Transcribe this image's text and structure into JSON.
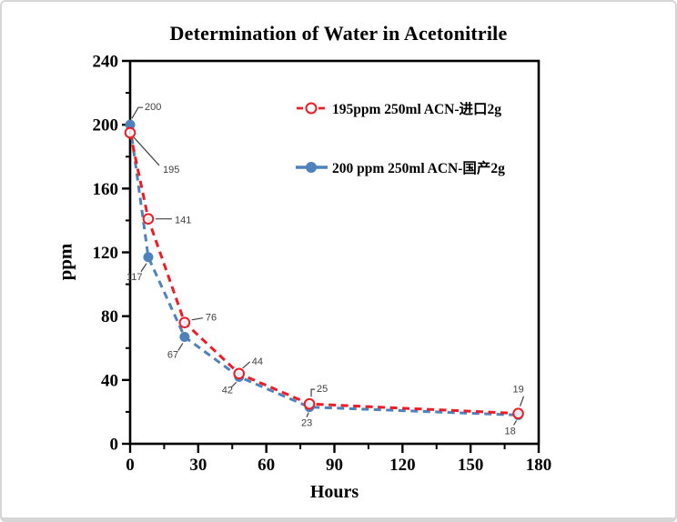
{
  "window": {
    "background": "#ffffff",
    "border_color": "#d6d6d6"
  },
  "chart_data": {
    "type": "line",
    "title": "Determination of Water in Acetonitrile",
    "xlabel": "Hours",
    "ylabel": "ppm",
    "xlim": [
      0,
      180
    ],
    "ylim": [
      0,
      240
    ],
    "x_major_ticks": [
      0,
      30,
      60,
      90,
      120,
      150,
      180
    ],
    "x_minor_step": 15,
    "y_major_ticks": [
      0,
      40,
      80,
      120,
      160,
      200,
      240
    ],
    "y_minor_step": 20,
    "grid": false,
    "legend_position": "inside-top-center",
    "axis_color": "#000000",
    "tick_label_color": "#000000",
    "data_label_color": "#3f3f3f",
    "leader_line_color": "#404040",
    "series": [
      {
        "name": "195ppm  250ml ACN-进口2g",
        "color": "#ee1c25",
        "line_style": "dashed",
        "marker": "open-circle",
        "x": [
          0,
          8,
          24,
          48,
          79,
          171
        ],
        "y": [
          195,
          141,
          76,
          44,
          25,
          19
        ],
        "annotations": [
          {
            "t": "195",
            "dx": 36,
            "dy": 40,
            "leader": [
              [
                4,
                5
              ],
              [
                32,
                36
              ]
            ]
          },
          {
            "t": "141",
            "dx": 29,
            "dy": 1,
            "leader": [
              [
                8,
                0
              ],
              [
                26,
                0
              ]
            ]
          },
          {
            "t": "76",
            "dx": 23,
            "dy": -6,
            "leader": [
              [
                8,
                -3
              ],
              [
                20,
                -5
              ]
            ]
          },
          {
            "t": "44",
            "dx": 14,
            "dy": -14,
            "leader": [
              [
                4,
                -6
              ],
              [
                12,
                -13
              ]
            ]
          },
          {
            "t": "25",
            "dx": 8,
            "dy": -17,
            "leader": [
              [
                2,
                -8
              ],
              [
                2,
                -16
              ],
              [
                6,
                -16
              ]
            ]
          },
          {
            "t": "19",
            "dx": -6,
            "dy": -27,
            "leader": [
              [
                2,
                -8
              ],
              [
                6,
                -19
              ]
            ]
          }
        ]
      },
      {
        "name": "200 ppm 250ml ACN-国产2g",
        "color": "#4f81bd",
        "line_style": "dashed",
        "marker": "filled-circle",
        "x": [
          0,
          8,
          24,
          48,
          79,
          171
        ],
        "y": [
          200,
          117,
          67,
          42,
          23,
          18
        ],
        "annotations": [
          {
            "t": "200",
            "dx": 16,
            "dy": -20,
            "leader": [
              [
                2,
                -7
              ],
              [
                9,
                -19
              ],
              [
                14,
                -19
              ]
            ]
          },
          {
            "t": "117",
            "dx": -24,
            "dy": 21,
            "leader": [
              [
                -2,
                7
              ],
              [
                -8,
                16
              ]
            ]
          },
          {
            "t": "67",
            "dx": -19,
            "dy": 19,
            "leader": [
              [
                -2,
                7
              ],
              [
                -7,
                15
              ]
            ]
          },
          {
            "t": "42",
            "dx": -19,
            "dy": 14,
            "leader": [
              [
                -3,
                6
              ],
              [
                -9,
                12
              ]
            ]
          },
          {
            "t": "23",
            "dx": -9,
            "dy": 17,
            "leader": [
              [
                -1,
                6
              ],
              [
                -3,
                11
              ]
            ]
          },
          {
            "t": "18",
            "dx": -15,
            "dy": 17,
            "leader": [
              [
                -2,
                6
              ],
              [
                -5,
                11
              ]
            ]
          }
        ]
      }
    ]
  }
}
